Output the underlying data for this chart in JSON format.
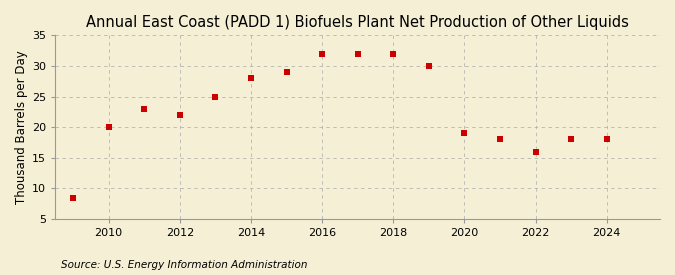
{
  "title": "Annual East Coast (PADD 1) Biofuels Plant Net Production of Other Liquids",
  "ylabel": "Thousand Barrels per Day",
  "source": "Source: U.S. Energy Information Administration",
  "background_color": "#f5efd5",
  "plot_background_color": "#f5efd5",
  "marker_color": "#cc0000",
  "marker": "s",
  "marker_size": 4,
  "years": [
    2009,
    2010,
    2011,
    2012,
    2013,
    2014,
    2015,
    2016,
    2017,
    2018,
    2019,
    2020,
    2021,
    2022,
    2023,
    2024
  ],
  "values": [
    8.5,
    20.0,
    23.0,
    22.0,
    25.0,
    28.0,
    29.0,
    32.0,
    32.0,
    32.0,
    30.0,
    19.0,
    18.0,
    16.0,
    18.0,
    18.0
  ],
  "xlim": [
    2008.5,
    2025.5
  ],
  "ylim": [
    5,
    35
  ],
  "yticks": [
    5,
    10,
    15,
    20,
    25,
    30,
    35
  ],
  "xticks": [
    2010,
    2012,
    2014,
    2016,
    2018,
    2020,
    2022,
    2024
  ],
  "grid_color": "#aaaaaa",
  "title_fontsize": 10.5,
  "label_fontsize": 8.5,
  "tick_fontsize": 8,
  "source_fontsize": 7.5
}
